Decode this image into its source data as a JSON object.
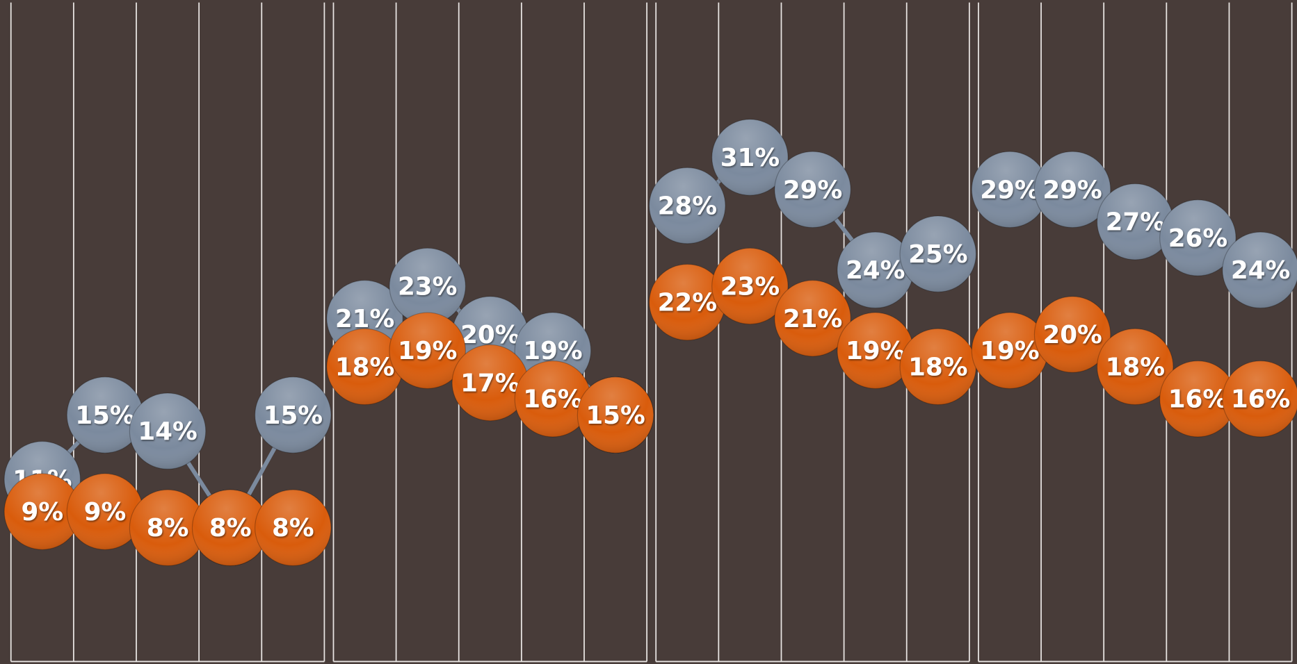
{
  "chart_data": [
    {
      "type": "line",
      "ylim": [
        0,
        40
      ],
      "series": [
        {
          "color": "#7b8a9e",
          "values": [
            11,
            15,
            14,
            8,
            15
          ],
          "value_labels": [
            "11%",
            "15%",
            "14%",
            null,
            "15%"
          ]
        },
        {
          "color": "#d95c0c",
          "values": [
            9,
            9,
            8,
            8,
            8
          ],
          "value_labels": [
            "9%",
            "9%",
            "8%",
            "8%",
            "8%"
          ]
        }
      ]
    },
    {
      "type": "line",
      "ylim": [
        0,
        40
      ],
      "series": [
        {
          "color": "#7b8a9e",
          "values": [
            21,
            23,
            20,
            19,
            15
          ],
          "value_labels": [
            "21%",
            "23%",
            "20%",
            "19%",
            null
          ]
        },
        {
          "color": "#d95c0c",
          "values": [
            18,
            19,
            17,
            16,
            15
          ],
          "value_labels": [
            "18%",
            "19%",
            "17%",
            "16%",
            "15%"
          ]
        }
      ]
    },
    {
      "type": "line",
      "ylim": [
        0,
        40
      ],
      "series": [
        {
          "color": "#7b8a9e",
          "values": [
            28,
            31,
            29,
            24,
            25
          ],
          "value_labels": [
            "28%",
            "31%",
            "29%",
            "24%",
            "25%"
          ]
        },
        {
          "color": "#d95c0c",
          "values": [
            22,
            23,
            21,
            19,
            18
          ],
          "value_labels": [
            "22%",
            "23%",
            "21%",
            "19%",
            "18%"
          ]
        }
      ]
    },
    {
      "type": "line",
      "ylim": [
        0,
        40
      ],
      "series": [
        {
          "color": "#7b8a9e",
          "values": [
            29,
            29,
            27,
            26,
            24
          ],
          "value_labels": [
            "29%",
            "29%",
            "27%",
            "26%",
            "24%"
          ]
        },
        {
          "color": "#d95c0c",
          "values": [
            19,
            20,
            18,
            16,
            16
          ],
          "value_labels": [
            "19%",
            "20%",
            "18%",
            "16%",
            "16%"
          ]
        }
      ]
    }
  ]
}
